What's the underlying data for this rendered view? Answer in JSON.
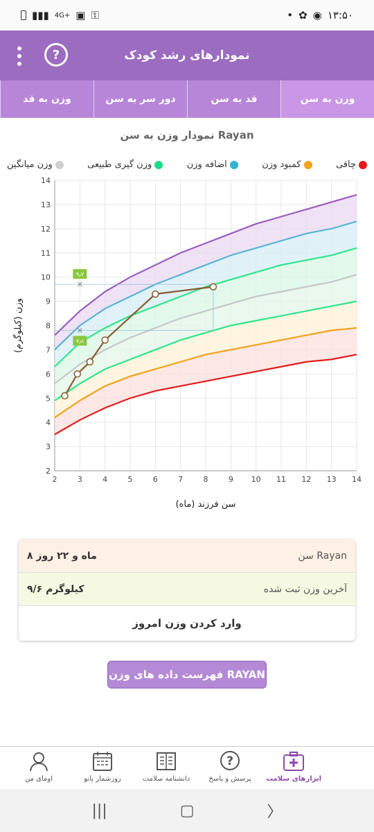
{
  "status_bar": {
    "time": "۱۳:۵۰",
    "network": "4G+"
  },
  "app_bar": {
    "title": "نمودارهای رشد کودک",
    "help_icon": "?"
  },
  "tabs": [
    {
      "label": "وزن به سن",
      "active": true
    },
    {
      "label": "قد به سن",
      "active": false
    },
    {
      "label": "دور سر به سن",
      "active": false
    },
    {
      "label": "وزن به قد",
      "active": false
    }
  ],
  "chart_title": "نمودار وزن به سن Rayan",
  "legend": [
    {
      "label": "چاقی",
      "color": "#e21b1b"
    },
    {
      "label": "کمبود وزن",
      "color": "#f3a21a"
    },
    {
      "label": "اضافه وزن",
      "color": "#31b3d1"
    },
    {
      "label": "وزن گیری طبیعی",
      "color": "#1fd98a"
    },
    {
      "label": "وزن میانگین",
      "color": "#cfcfcf"
    }
  ],
  "chart_data": {
    "type": "line",
    "xlabel": "سن فرزند (ماه)",
    "ylabel": "وزن (کیلوگرم)",
    "xlim": [
      2,
      14
    ],
    "ylim": [
      2,
      14
    ],
    "x_ticks": [
      2,
      3,
      4,
      5,
      6,
      7,
      8,
      9,
      10,
      11,
      12,
      13,
      14
    ],
    "y_ticks": [
      2,
      3,
      4,
      5,
      6,
      7,
      8,
      9,
      10,
      11,
      12,
      13,
      14
    ],
    "grid": true,
    "reference_x": [
      2,
      3,
      4,
      5,
      6,
      7,
      8,
      9,
      10,
      11,
      12,
      13,
      14
    ],
    "reference_curves": [
      {
        "color": "#9b5cc0",
        "values": [
          7.6,
          8.6,
          9.4,
          10.0,
          10.5,
          11.0,
          11.4,
          11.8,
          12.2,
          12.5,
          12.8,
          13.1,
          13.4
        ]
      },
      {
        "color": "#5ab3d6",
        "values": [
          7.0,
          8.0,
          8.7,
          9.2,
          9.7,
          10.1,
          10.5,
          10.9,
          11.2,
          11.5,
          11.8,
          12.0,
          12.3
        ]
      },
      {
        "color": "#2ee68a",
        "values": [
          6.3,
          7.3,
          7.9,
          8.4,
          8.8,
          9.2,
          9.6,
          9.9,
          10.2,
          10.5,
          10.7,
          10.9,
          11.2
        ]
      },
      {
        "color": "#c7c7c7",
        "values": [
          5.6,
          6.4,
          7.0,
          7.5,
          7.9,
          8.3,
          8.6,
          8.9,
          9.2,
          9.4,
          9.6,
          9.8,
          10.1
        ]
      },
      {
        "color": "#2ee68a",
        "values": [
          4.9,
          5.6,
          6.2,
          6.6,
          7.0,
          7.4,
          7.7,
          8.0,
          8.2,
          8.4,
          8.6,
          8.8,
          9.0
        ]
      },
      {
        "color": "#f3a21a",
        "values": [
          4.2,
          4.9,
          5.5,
          5.9,
          6.2,
          6.5,
          6.8,
          7.0,
          7.2,
          7.4,
          7.6,
          7.8,
          7.9
        ]
      },
      {
        "color": "#e21b1b",
        "values": [
          3.5,
          4.1,
          4.6,
          5.0,
          5.3,
          5.5,
          5.7,
          5.9,
          6.1,
          6.3,
          6.5,
          6.6,
          6.8
        ]
      }
    ],
    "series": [
      {
        "x": [
          2.4,
          2.9,
          3.4,
          4.0,
          6.0,
          8.3
        ],
        "y": [
          5.1,
          6.0,
          6.5,
          7.4,
          9.3,
          9.6
        ]
      }
    ],
    "markers": [
      {
        "x": 3,
        "y": 9.7,
        "label": "۹٫۷"
      },
      {
        "x": 3,
        "y": 7.8,
        "label": "۷٫۸"
      }
    ]
  },
  "info": {
    "age_label": "سن Rayan",
    "age_value": "۸ ماه و ۲۲ روز",
    "weight_label": "آخرین وزن ثبت شده",
    "weight_value": "۹/۶ کیلوگرم",
    "enter_weight": "وارد کردن وزن امروز"
  },
  "list_button": "فهرست داده های وزن RAYAN",
  "bottom_nav": [
    {
      "label": "ابزارهای سلامت",
      "icon": "medical-kit-icon",
      "active": true
    },
    {
      "label": "پرسش و پاسخ",
      "icon": "question-icon",
      "active": false
    },
    {
      "label": "دانشنامه سلامت",
      "icon": "book-icon",
      "active": false
    },
    {
      "label": "روزشمار بانو",
      "icon": "calendar-icon",
      "active": false
    },
    {
      "label": "اومای من",
      "icon": "user-icon",
      "active": false
    }
  ]
}
